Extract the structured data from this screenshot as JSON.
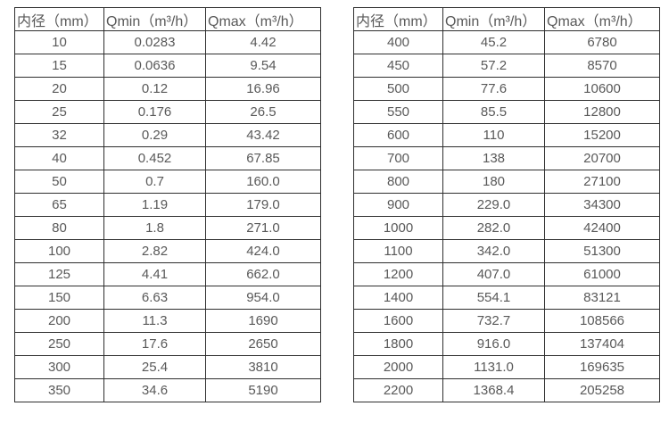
{
  "colors": {
    "text": "#595959",
    "border": "#2e2e2e",
    "background": "#ffffff"
  },
  "chart_data": [
    {
      "type": "table",
      "name": "flow-rates-dn10-dn350",
      "headers": [
        "内径（mm）",
        "Qmin（m³/h）",
        "Qmax（m³/h）"
      ],
      "rows": [
        [
          "10",
          "0.0283",
          "4.42"
        ],
        [
          "15",
          "0.0636",
          "9.54"
        ],
        [
          "20",
          "0.12",
          "16.96"
        ],
        [
          "25",
          "0.176",
          "26.5"
        ],
        [
          "32",
          "0.29",
          "43.42"
        ],
        [
          "40",
          "0.452",
          "67.85"
        ],
        [
          "50",
          "0.7",
          "160.0"
        ],
        [
          "65",
          "1.19",
          "179.0"
        ],
        [
          "80",
          "1.8",
          "271.0"
        ],
        [
          "100",
          "2.82",
          "424.0"
        ],
        [
          "125",
          "4.41",
          "662.0"
        ],
        [
          "150",
          "6.63",
          "954.0"
        ],
        [
          "200",
          "11.3",
          "1690"
        ],
        [
          "250",
          "17.6",
          "2650"
        ],
        [
          "300",
          "25.4",
          "3810"
        ],
        [
          "350",
          "34.6",
          "5190"
        ]
      ]
    },
    {
      "type": "table",
      "name": "flow-rates-dn400-dn2200",
      "headers": [
        "内径（mm）",
        "Qmin（m³/h）",
        "Qmax（m³/h）"
      ],
      "rows": [
        [
          "400",
          "45.2",
          "6780"
        ],
        [
          "450",
          "57.2",
          "8570"
        ],
        [
          "500",
          "77.6",
          "10600"
        ],
        [
          "550",
          "85.5",
          "12800"
        ],
        [
          "600",
          "110",
          "15200"
        ],
        [
          "700",
          "138",
          "20700"
        ],
        [
          "800",
          "180",
          "27100"
        ],
        [
          "900",
          "229.0",
          "34300"
        ],
        [
          "1000",
          "282.0",
          "42400"
        ],
        [
          "1100",
          "342.0",
          "51300"
        ],
        [
          "1200",
          "407.0",
          "61000"
        ],
        [
          "1400",
          "554.1",
          "83121"
        ],
        [
          "1600",
          "732.7",
          "108566"
        ],
        [
          "1800",
          "916.0",
          "137404"
        ],
        [
          "2000",
          "1131.0",
          "169635"
        ],
        [
          "2200",
          "1368.4",
          "205258"
        ]
      ]
    }
  ]
}
